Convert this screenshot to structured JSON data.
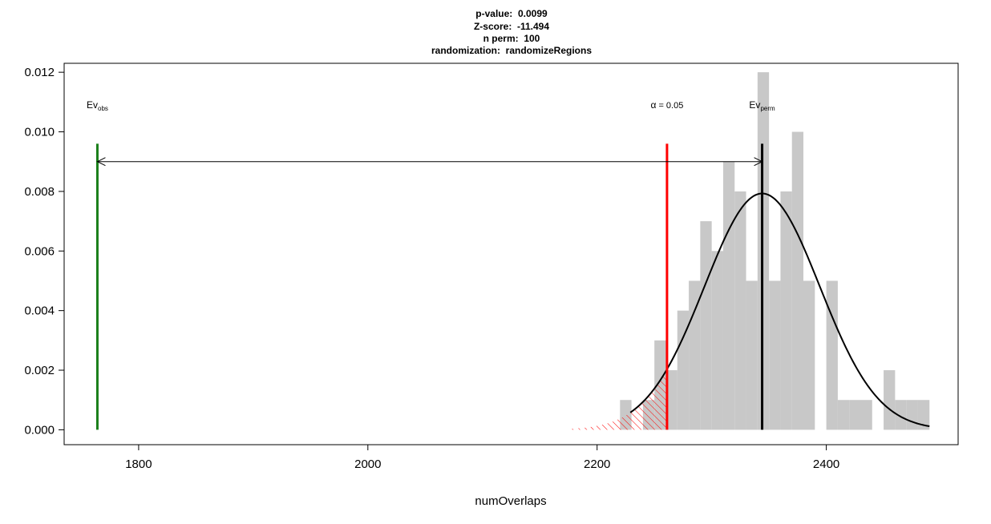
{
  "chart_data": {
    "type": "bar",
    "subtype": "histogram with density curve",
    "title_lines": [
      {
        "label": "p-value:",
        "value": "0.0099"
      },
      {
        "label": "Z-score:",
        "value": "-11.494"
      },
      {
        "label": "n perm:",
        "value": "100"
      },
      {
        "label": "randomization:",
        "value": "randomizeRegions"
      }
    ],
    "xlabel": "numOverlaps",
    "ylabel": "",
    "xlim": [
      1735,
      2515
    ],
    "ylim": [
      -0.0005,
      0.0123
    ],
    "x_ticks": [
      1800,
      2000,
      2200,
      2400
    ],
    "x_tick_labels": [
      "1800",
      "2000",
      "2200",
      "2400"
    ],
    "y_ticks": [
      0,
      0.002,
      0.004,
      0.006,
      0.008,
      0.01,
      0.012
    ],
    "y_tick_labels": [
      "0.000",
      "0.002",
      "0.004",
      "0.006",
      "0.008",
      "0.010",
      "0.012"
    ],
    "histogram": {
      "bin_width": 10,
      "bins": [
        {
          "x0": 2220,
          "x1": 2230,
          "density": 0.001
        },
        {
          "x0": 2230,
          "x1": 2240,
          "density": 0.0
        },
        {
          "x0": 2240,
          "x1": 2250,
          "density": 0.001
        },
        {
          "x0": 2250,
          "x1": 2260,
          "density": 0.003
        },
        {
          "x0": 2260,
          "x1": 2270,
          "density": 0.002
        },
        {
          "x0": 2270,
          "x1": 2280,
          "density": 0.004
        },
        {
          "x0": 2280,
          "x1": 2290,
          "density": 0.005
        },
        {
          "x0": 2290,
          "x1": 2300,
          "density": 0.007
        },
        {
          "x0": 2300,
          "x1": 2310,
          "density": 0.006
        },
        {
          "x0": 2310,
          "x1": 2320,
          "density": 0.009
        },
        {
          "x0": 2320,
          "x1": 2330,
          "density": 0.008
        },
        {
          "x0": 2330,
          "x1": 2340,
          "density": 0.005
        },
        {
          "x0": 2340,
          "x1": 2350,
          "density": 0.012
        },
        {
          "x0": 2350,
          "x1": 2360,
          "density": 0.005
        },
        {
          "x0": 2360,
          "x1": 2370,
          "density": 0.008
        },
        {
          "x0": 2370,
          "x1": 2380,
          "density": 0.01
        },
        {
          "x0": 2380,
          "x1": 2390,
          "density": 0.005
        },
        {
          "x0": 2390,
          "x1": 2400,
          "density": 0.0
        },
        {
          "x0": 2400,
          "x1": 2410,
          "density": 0.005
        },
        {
          "x0": 2410,
          "x1": 2420,
          "density": 0.001
        },
        {
          "x0": 2420,
          "x1": 2430,
          "density": 0.001
        },
        {
          "x0": 2430,
          "x1": 2440,
          "density": 0.001
        },
        {
          "x0": 2440,
          "x1": 2450,
          "density": 0.0
        },
        {
          "x0": 2450,
          "x1": 2460,
          "density": 0.002
        },
        {
          "x0": 2460,
          "x1": 2470,
          "density": 0.001
        },
        {
          "x0": 2470,
          "x1": 2480,
          "density": 0.001
        },
        {
          "x0": 2480,
          "x1": 2490,
          "density": 0.001
        }
      ]
    },
    "density_curve": {
      "distribution": "normal",
      "mean": 2344,
      "sd": 50.3,
      "x_start": 2229,
      "x_end": 2490
    },
    "rejection_region": {
      "x_start": 2175,
      "x_end": 2261,
      "hatch_color": "#ff0000"
    },
    "lines": [
      {
        "name": "observed",
        "x": 1764,
        "y_top": 0.0096,
        "color": "#1a7f1a"
      },
      {
        "name": "alpha",
        "x": 2261,
        "y_top": 0.0096,
        "color": "#ff0000"
      },
      {
        "name": "permuted-mean",
        "x": 2344,
        "y_top": 0.0096,
        "color": "#000000"
      }
    ],
    "arrow": {
      "x_from": 1764,
      "x_to": 2344,
      "y": 0.009
    },
    "annotations": {
      "ev_obs": {
        "main": "Ev",
        "sub": "obs",
        "x": 1764,
        "y": 0.0108
      },
      "alpha": {
        "greek": "α",
        "rest": " = 0.05",
        "x": 2261,
        "y": 0.0108
      },
      "ev_perm": {
        "main": "Ev",
        "sub": "perm",
        "x": 2344,
        "y": 0.0108
      }
    },
    "colors": {
      "bar_fill": "#c8c8c8",
      "curve": "#000000",
      "axis": "#000000"
    }
  }
}
